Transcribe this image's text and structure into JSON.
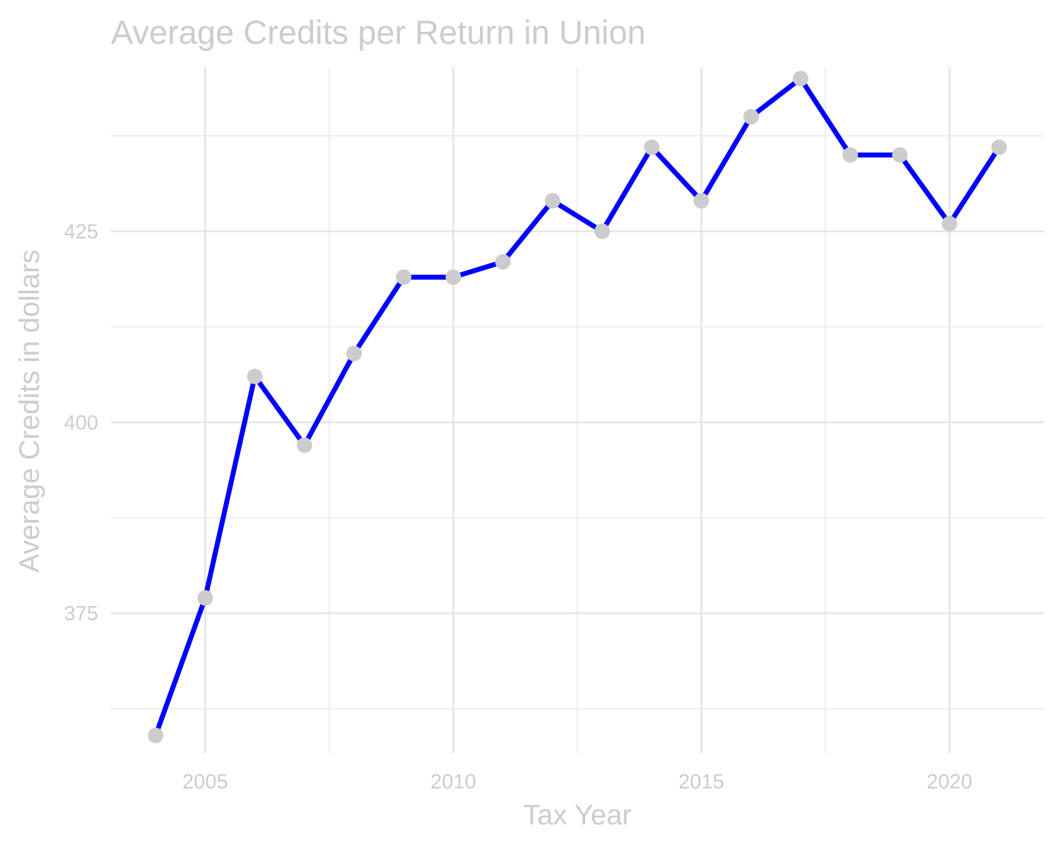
{
  "chart_data": {
    "type": "line",
    "title": "Average Credits per Return in Union",
    "xlabel": "Tax Year",
    "ylabel": "Average Credits in dollars",
    "x": [
      2004,
      2005,
      2006,
      2007,
      2008,
      2009,
      2010,
      2011,
      2012,
      2013,
      2014,
      2015,
      2016,
      2017,
      2018,
      2019,
      2020,
      2021
    ],
    "series": [
      {
        "values": [
          359,
          377,
          406,
          397,
          409,
          419,
          419,
          421,
          429,
          425,
          436,
          429,
          440,
          445,
          435,
          435,
          426,
          436
        ]
      }
    ],
    "x_ticks": [
      2005,
      2010,
      2015,
      2020
    ],
    "x_tick_labels": [
      "2005",
      "2010",
      "2015",
      "2020"
    ],
    "y_ticks": [
      375,
      400,
      425
    ],
    "y_tick_labels": [
      "375",
      "400",
      "425"
    ],
    "xlim": [
      2003.1,
      2021.9
    ],
    "ylim": [
      356.6,
      446.5
    ],
    "grid": true,
    "line_color": "#0000ff",
    "point_color": "#cccccc",
    "text_color": "#cccccc"
  }
}
